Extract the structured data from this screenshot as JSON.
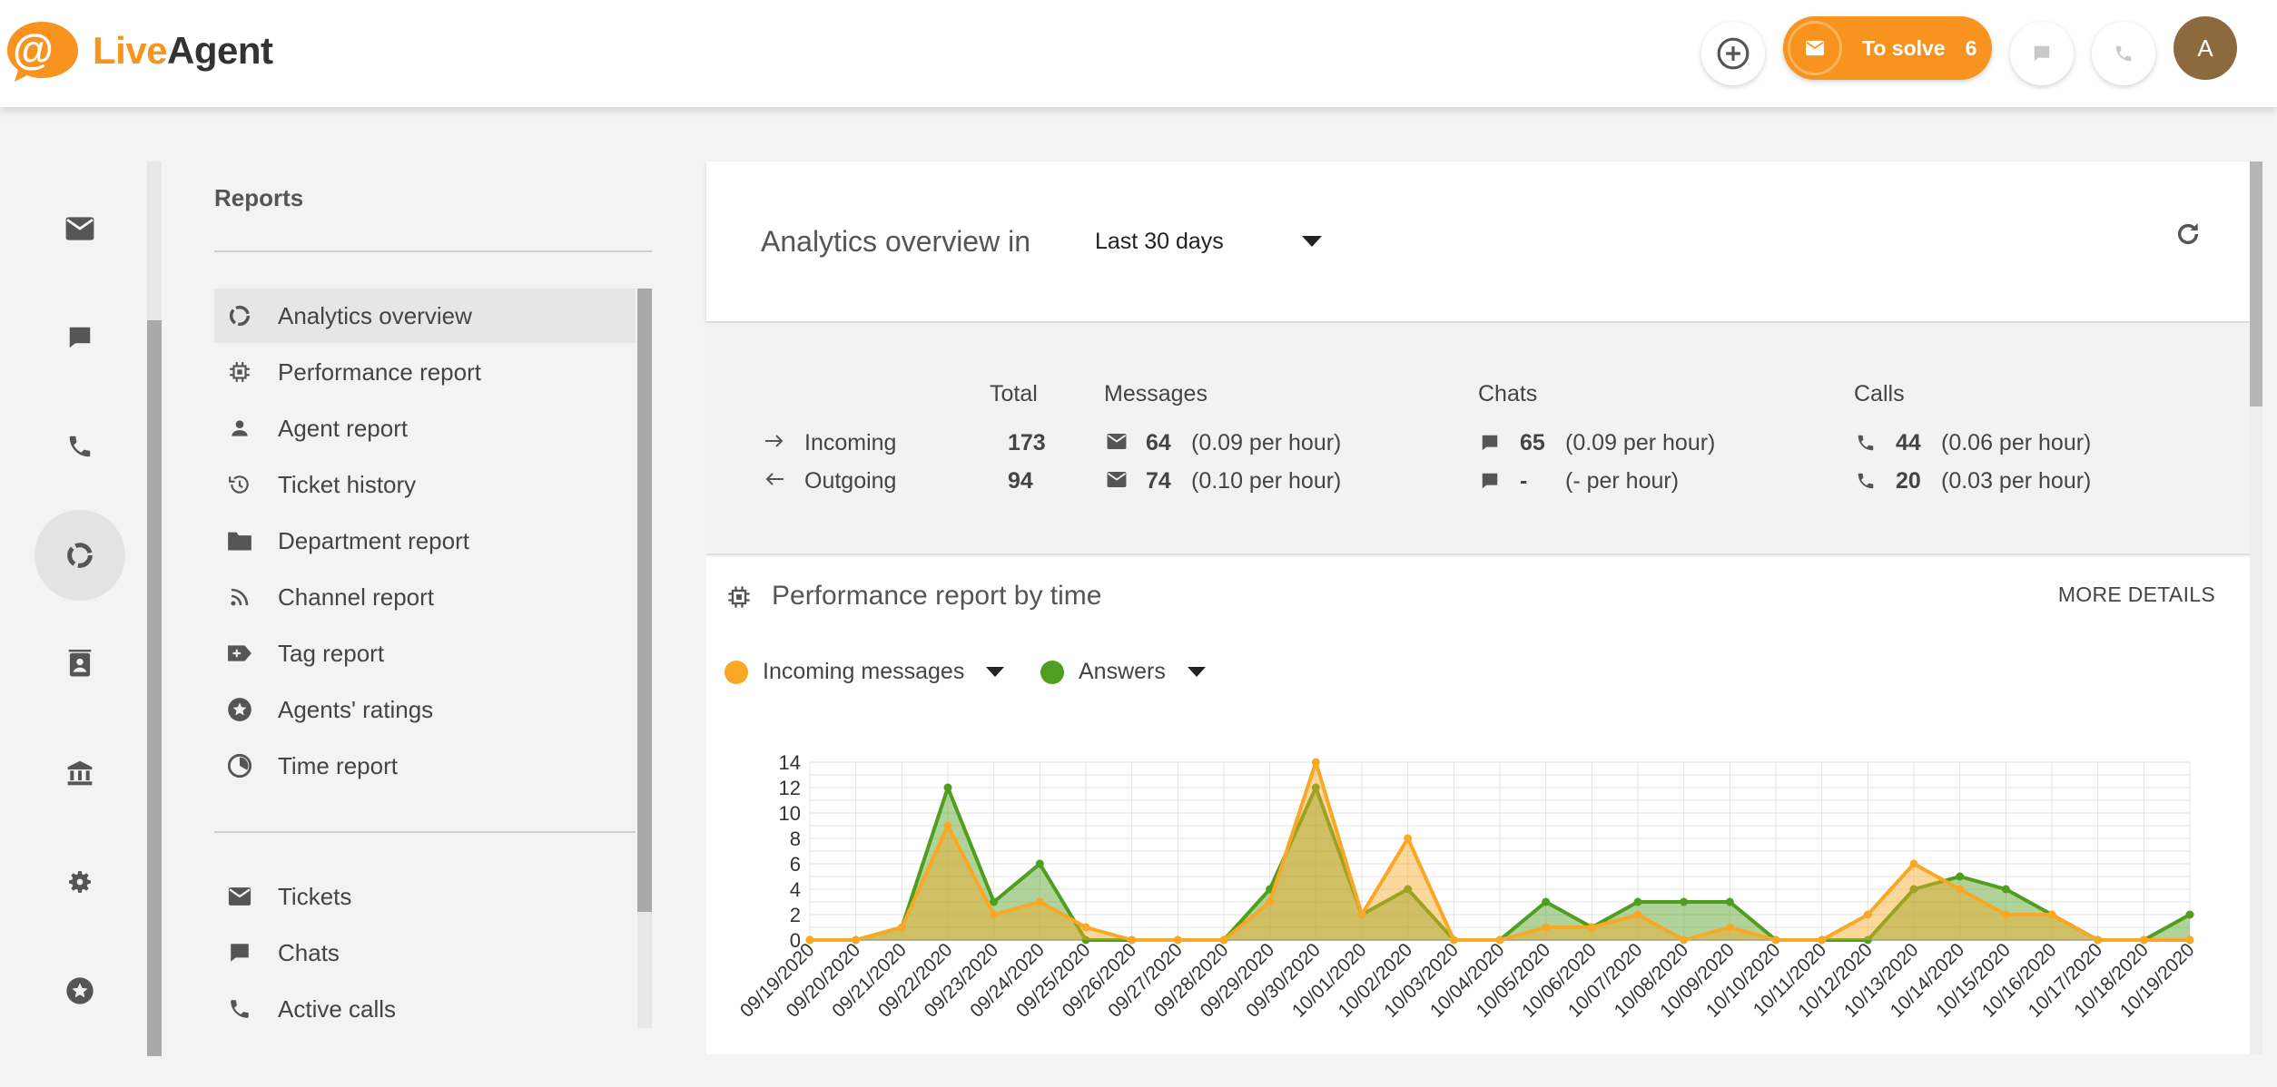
{
  "brand": {
    "live": "Live",
    "agent": "Agent"
  },
  "topbar": {
    "to_solve_label": "To solve",
    "to_solve_count": "6",
    "avatar_letter": "A"
  },
  "nav": {
    "title": "Reports",
    "items": [
      {
        "label": "Analytics overview",
        "icon": "analytics-icon"
      },
      {
        "label": "Performance report",
        "icon": "chip-icon"
      },
      {
        "label": "Agent report",
        "icon": "person-icon"
      },
      {
        "label": "Ticket history",
        "icon": "history-icon"
      },
      {
        "label": "Department report",
        "icon": "folder-icon"
      },
      {
        "label": "Channel report",
        "icon": "rss-icon"
      },
      {
        "label": "Tag report",
        "icon": "tag-icon"
      },
      {
        "label": "Agents' ratings",
        "icon": "star-icon"
      },
      {
        "label": "Time report",
        "icon": "clock-icon"
      }
    ],
    "items2": [
      {
        "label": "Tickets",
        "icon": "mail-icon"
      },
      {
        "label": "Chats",
        "icon": "chat-icon"
      },
      {
        "label": "Active calls",
        "icon": "phone-icon"
      }
    ]
  },
  "header": {
    "title": "Analytics overview in",
    "period": "Last 30 days"
  },
  "stats": {
    "col_total": "Total",
    "col_messages": "Messages",
    "col_chats": "Chats",
    "col_calls": "Calls",
    "incoming": {
      "label": "Incoming",
      "total": "173",
      "messages": "64",
      "messages_rate": "(0.09 per hour)",
      "chats": "65",
      "chats_rate": "(0.09 per hour)",
      "calls": "44",
      "calls_rate": "(0.06 per hour)"
    },
    "outgoing": {
      "label": "Outgoing",
      "total": "94",
      "messages": "74",
      "messages_rate": "(0.10 per hour)",
      "chats": "-",
      "chats_rate": "(- per hour)",
      "calls": "20",
      "calls_rate": "(0.03 per hour)"
    }
  },
  "perf": {
    "title": "Performance report by time",
    "more_details": "MORE DETAILS",
    "legend_incoming": "Incoming messages",
    "legend_answers": "Answers"
  },
  "colors": {
    "orange": "#f9a825",
    "green": "#4f9e1e",
    "brand": "#f7931e"
  },
  "chart_data": {
    "type": "area",
    "title": "Performance report by time",
    "ylim": [
      0,
      14
    ],
    "yticks": [
      0,
      2,
      4,
      6,
      8,
      10,
      12,
      14
    ],
    "x": [
      "09/19/2020",
      "09/20/2020",
      "09/21/2020",
      "09/22/2020",
      "09/23/2020",
      "09/24/2020",
      "09/25/2020",
      "09/26/2020",
      "09/27/2020",
      "09/28/2020",
      "09/29/2020",
      "09/30/2020",
      "10/01/2020",
      "10/02/2020",
      "10/03/2020",
      "10/04/2020",
      "10/05/2020",
      "10/06/2020",
      "10/07/2020",
      "10/08/2020",
      "10/09/2020",
      "10/10/2020",
      "10/11/2020",
      "10/12/2020",
      "10/13/2020",
      "10/14/2020",
      "10/15/2020",
      "10/16/2020",
      "10/17/2020",
      "10/18/2020",
      "10/19/2020"
    ],
    "series": [
      {
        "name": "Answers",
        "color": "#4f9e1e",
        "values": [
          0,
          0,
          1,
          12,
          3,
          6,
          0,
          0,
          0,
          0,
          4,
          12,
          2,
          4,
          0,
          0,
          3,
          1,
          3,
          3,
          3,
          0,
          0,
          0,
          4,
          5,
          4,
          2,
          0,
          0,
          2
        ]
      },
      {
        "name": "Incoming messages",
        "color": "#f9a825",
        "values": [
          0,
          0,
          1,
          9,
          2,
          3,
          1,
          0,
          0,
          0,
          3,
          14,
          2,
          8,
          0,
          0,
          1,
          1,
          2,
          0,
          1,
          0,
          0,
          2,
          6,
          4,
          2,
          2,
          0,
          0,
          0
        ]
      }
    ]
  }
}
